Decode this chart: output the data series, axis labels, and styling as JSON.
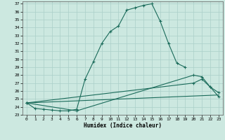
{
  "xlabel": "Humidex (Indice chaleur)",
  "bg_color": "#cce8e0",
  "line_color": "#1a6b5a",
  "grid_color": "#aacfc8",
  "xlim": [
    -0.5,
    23.5
  ],
  "ylim": [
    23,
    37.3
  ],
  "yticks": [
    23,
    24,
    25,
    26,
    27,
    28,
    29,
    30,
    31,
    32,
    33,
    34,
    35,
    36,
    37
  ],
  "xticks": [
    0,
    1,
    2,
    3,
    4,
    5,
    6,
    7,
    8,
    9,
    10,
    11,
    12,
    13,
    14,
    15,
    16,
    17,
    18,
    19,
    20,
    21,
    22,
    23
  ],
  "series1_x": [
    0,
    1,
    2,
    3,
    4,
    5,
    6,
    7,
    8,
    9,
    10,
    11,
    12,
    13,
    14,
    15,
    16,
    17,
    18,
    19
  ],
  "series1_y": [
    24.5,
    23.8,
    23.7,
    23.6,
    23.5,
    23.5,
    23.7,
    27.5,
    29.7,
    32.0,
    33.5,
    34.2,
    36.2,
    36.5,
    36.8,
    37.0,
    34.8,
    32.0,
    29.5,
    29.0
  ],
  "series2_x": [
    0,
    6,
    20,
    21,
    22,
    23
  ],
  "series2_y": [
    24.5,
    23.5,
    28.0,
    27.8,
    26.5,
    25.3
  ],
  "series3_x": [
    0,
    20,
    21,
    22,
    23
  ],
  "series3_y": [
    24.5,
    27.0,
    27.5,
    26.5,
    25.8
  ],
  "series4_x": [
    0,
    23
  ],
  "series4_y": [
    24.5,
    25.5
  ]
}
